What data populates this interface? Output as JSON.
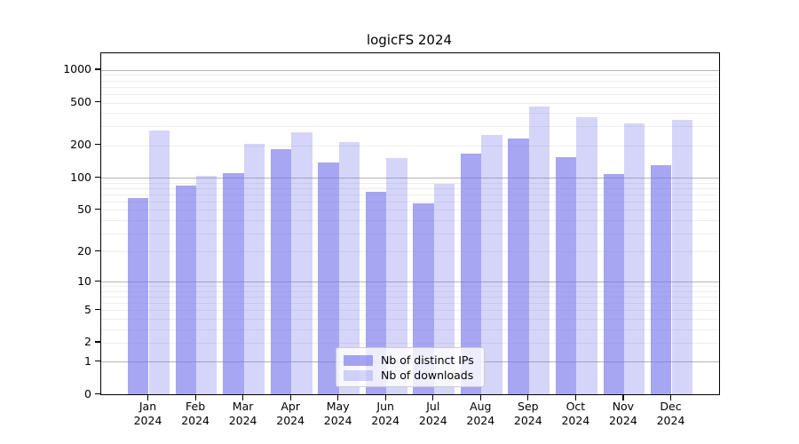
{
  "title": "logicFS 2024",
  "chart_data": {
    "type": "bar",
    "title": "logicFS 2024",
    "categories": [
      "Jan",
      "Feb",
      "Mar",
      "Apr",
      "May",
      "Jun",
      "Jul",
      "Aug",
      "Sep",
      "Oct",
      "Nov",
      "Dec"
    ],
    "year_label": "2024",
    "series": [
      {
        "name": "Nb of distinct IPs",
        "values": [
          65,
          84,
          110,
          185,
          138,
          74,
          57,
          167,
          230,
          155,
          108,
          132
        ],
        "color_hex": "#a6a6f1",
        "color_rgba": "rgba(120,120,235,0.66)"
      },
      {
        "name": "Nb of downloads",
        "values": [
          275,
          105,
          205,
          265,
          215,
          152,
          88,
          250,
          460,
          365,
          320,
          345
        ],
        "color_hex": "#d7d7f9",
        "color_rgba": "rgba(120,120,235,0.31)"
      }
    ],
    "y_ticks": [
      0,
      1,
      2,
      5,
      10,
      20,
      50,
      100,
      200,
      500,
      1000
    ],
    "y_scale": "log1p",
    "ylim": [
      0,
      1430
    ],
    "xlabel": "",
    "ylabel": "",
    "grid": true,
    "legend_position": "lower center",
    "colors": {
      "grid_minor": "#ededed",
      "grid_major": "#b3b3b3",
      "spine": "#000000",
      "background": "#ffffff"
    }
  }
}
